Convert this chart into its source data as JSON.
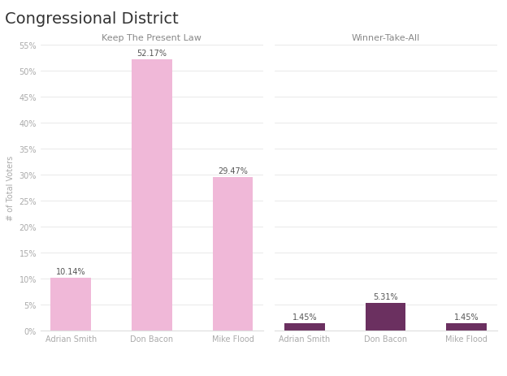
{
  "title": "Congressional District",
  "panel1_title": "Keep The Present Law",
  "panel2_title": "Winner-Take-All",
  "categories": [
    "Adrian Smith",
    "Don Bacon",
    "Mike Flood"
  ],
  "panel1_values": [
    10.14,
    52.17,
    29.47
  ],
  "panel2_values": [
    1.45,
    5.31,
    1.45
  ],
  "panel1_bar_color": "#f0b8d8",
  "panel2_bar_color": "#6b3060",
  "ylabel": "# of Total Voters",
  "ylim": [
    0,
    55
  ],
  "yticks": [
    0,
    5,
    10,
    15,
    20,
    25,
    30,
    35,
    40,
    45,
    50,
    55
  ],
  "background_color": "#ffffff",
  "grid_color": "#e0e0e0",
  "title_fontsize": 14,
  "panel_title_fontsize": 8,
  "label_fontsize": 7,
  "tick_fontsize": 7,
  "ylabel_fontsize": 7,
  "annotation_fontsize": 7
}
